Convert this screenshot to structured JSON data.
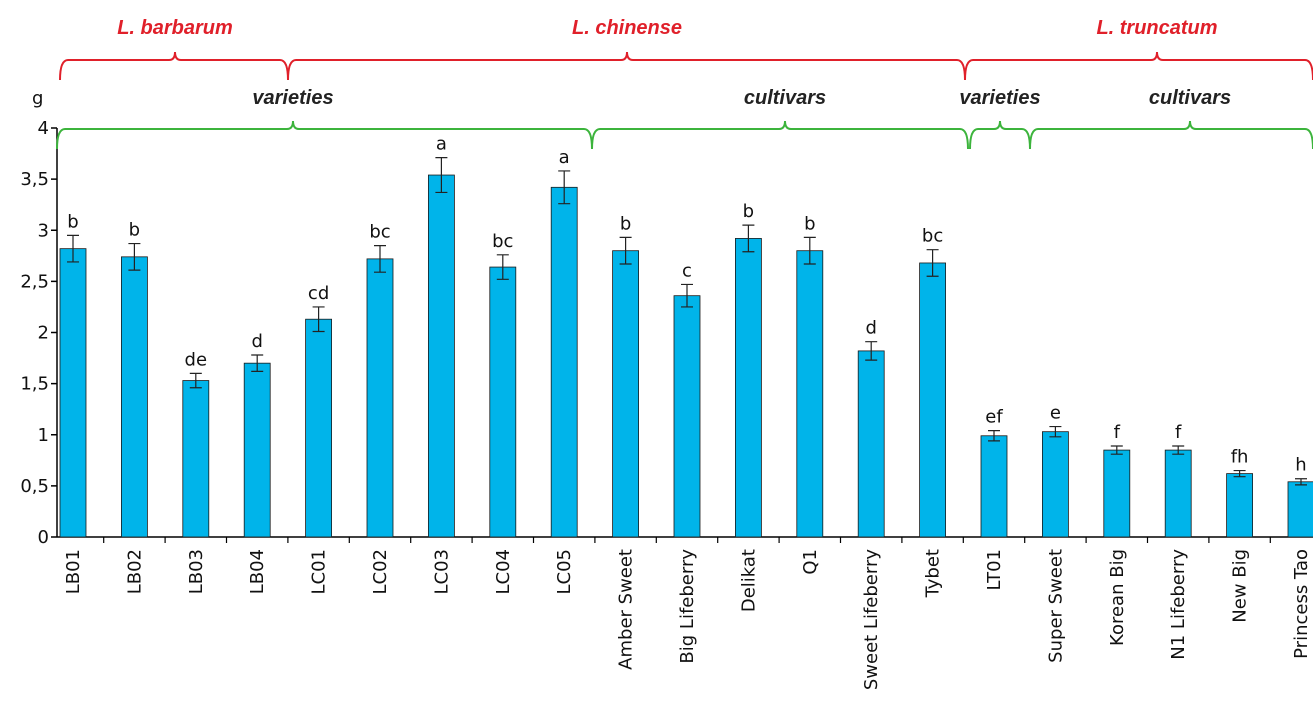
{
  "chart_data": {
    "type": "bar",
    "y_axis_label": "g",
    "categories": [
      "LB01",
      "LB02",
      "LB03",
      "LB04",
      "LC01",
      "LC02",
      "LC03",
      "LC04",
      "LC05",
      "Amber Sweet",
      "Big Lifeberry",
      "Delikat",
      "Q1",
      "Sweet Lifeberry",
      "Tybet",
      "LT01",
      "Super Sweet",
      "Korean Big",
      "N1 Lifeberry",
      "New Big",
      "Princess Tao"
    ],
    "values": [
      2.82,
      2.74,
      1.53,
      1.7,
      2.13,
      2.72,
      3.54,
      2.64,
      3.42,
      2.8,
      2.36,
      2.92,
      2.8,
      1.82,
      2.68,
      0.99,
      1.03,
      0.85,
      0.85,
      0.62,
      0.54
    ],
    "errors": [
      0.13,
      0.13,
      0.07,
      0.08,
      0.12,
      0.13,
      0.17,
      0.12,
      0.16,
      0.13,
      0.11,
      0.13,
      0.13,
      0.09,
      0.13,
      0.05,
      0.05,
      0.04,
      0.04,
      0.03,
      0.03
    ],
    "annotations": [
      "b",
      "b",
      "de",
      "d",
      "cd",
      "bc",
      "a",
      "bc",
      "a",
      "b",
      "c",
      "b",
      "b",
      "d",
      "bc",
      "ef",
      "e",
      "f",
      "f",
      "fh",
      "h"
    ],
    "color": "#00b4ea",
    "ylim": [
      0,
      4
    ],
    "yticks": [
      0,
      {
        "value": 0.5,
        "label": "0,5"
      },
      1,
      {
        "value": 1.5,
        "label": "1,5"
      },
      2,
      {
        "value": 2.5,
        "label": "2,5"
      },
      3,
      {
        "value": 3.5,
        "label": "3,5"
      },
      4
    ],
    "species_groups": [
      "L. barbarum",
      "L. chinense",
      "L. truncatum"
    ],
    "type_groups": [
      "varieties",
      "cultivars",
      "varieties",
      "cultivars"
    ]
  }
}
